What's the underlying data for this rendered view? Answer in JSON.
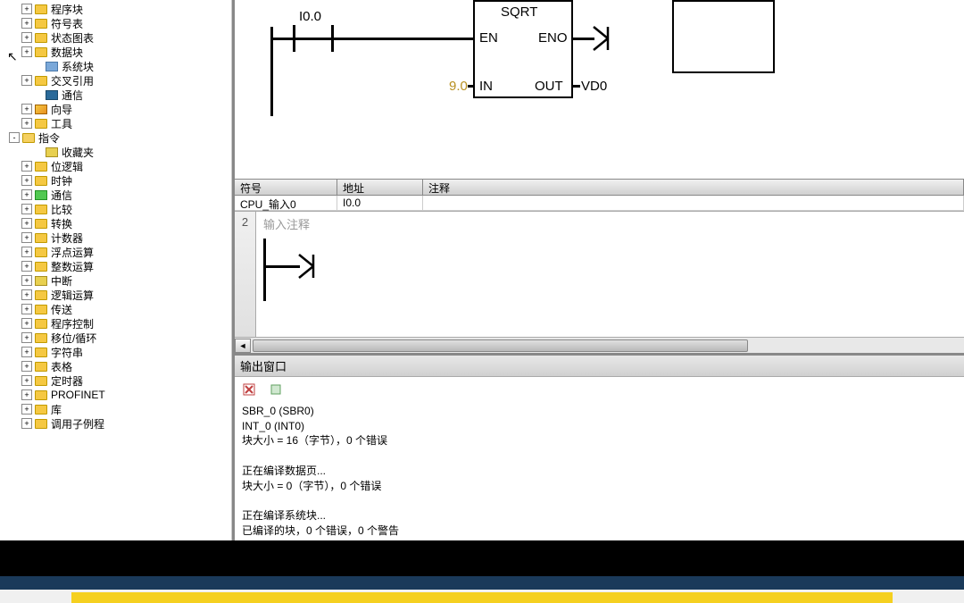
{
  "tree": {
    "items": [
      {
        "label": "程序块",
        "indent": 1,
        "toggle": "+",
        "icon": "folder"
      },
      {
        "label": "符号表",
        "indent": 1,
        "toggle": "+",
        "icon": "folder"
      },
      {
        "label": "状态图表",
        "indent": 1,
        "toggle": "+",
        "icon": "folder"
      },
      {
        "label": "数据块",
        "indent": 1,
        "toggle": "+",
        "icon": "folder"
      },
      {
        "label": "系统块",
        "indent": 2,
        "toggle": "",
        "icon": "block"
      },
      {
        "label": "交叉引用",
        "indent": 1,
        "toggle": "+",
        "icon": "folder"
      },
      {
        "label": "通信",
        "indent": 2,
        "toggle": "",
        "icon": "screen"
      },
      {
        "label": "向导",
        "indent": 1,
        "toggle": "+",
        "icon": "wand"
      },
      {
        "label": "工具",
        "indent": 1,
        "toggle": "+",
        "icon": "folder"
      },
      {
        "label": "指令",
        "indent": 0,
        "toggle": "-",
        "icon": "folder-open"
      },
      {
        "label": "收藏夹",
        "indent": 2,
        "toggle": "",
        "icon": "yellow"
      },
      {
        "label": "位逻辑",
        "indent": 1,
        "toggle": "+",
        "icon": "folder"
      },
      {
        "label": "时钟",
        "indent": 1,
        "toggle": "+",
        "icon": "folder"
      },
      {
        "label": "通信",
        "indent": 1,
        "toggle": "+",
        "icon": "green"
      },
      {
        "label": "比较",
        "indent": 1,
        "toggle": "+",
        "icon": "folder"
      },
      {
        "label": "转换",
        "indent": 1,
        "toggle": "+",
        "icon": "folder"
      },
      {
        "label": "计数器",
        "indent": 1,
        "toggle": "+",
        "icon": "folder"
      },
      {
        "label": "浮点运算",
        "indent": 1,
        "toggle": "+",
        "icon": "folder"
      },
      {
        "label": "整数运算",
        "indent": 1,
        "toggle": "+",
        "icon": "folder"
      },
      {
        "label": "中断",
        "indent": 1,
        "toggle": "+",
        "icon": "yellow"
      },
      {
        "label": "逻辑运算",
        "indent": 1,
        "toggle": "+",
        "icon": "folder"
      },
      {
        "label": "传送",
        "indent": 1,
        "toggle": "+",
        "icon": "folder"
      },
      {
        "label": "程序控制",
        "indent": 1,
        "toggle": "+",
        "icon": "folder"
      },
      {
        "label": "移位/循环",
        "indent": 1,
        "toggle": "+",
        "icon": "folder"
      },
      {
        "label": "字符串",
        "indent": 1,
        "toggle": "+",
        "icon": "folder"
      },
      {
        "label": "表格",
        "indent": 1,
        "toggle": "+",
        "icon": "folder"
      },
      {
        "label": "定时器",
        "indent": 1,
        "toggle": "+",
        "icon": "folder"
      },
      {
        "label": "PROFINET",
        "indent": 1,
        "toggle": "+",
        "icon": "folder"
      },
      {
        "label": "库",
        "indent": 1,
        "toggle": "+",
        "icon": "folder"
      },
      {
        "label": "调用子例程",
        "indent": 1,
        "toggle": "+",
        "icon": "folder"
      }
    ]
  },
  "ladder": {
    "contact_address": "I0.0",
    "block_name": "SQRT",
    "en_label": "EN",
    "eno_label": "ENO",
    "in_label": "IN",
    "out_label": "OUT",
    "in_value": "9.0",
    "out_addr": "VD0"
  },
  "symboltable": {
    "headers": {
      "sym": "符号",
      "addr": "地址",
      "comment": "注释"
    },
    "row": {
      "sym": "CPU_输入0",
      "addr": "I0.0",
      "comment": ""
    }
  },
  "network2": {
    "num": "2",
    "comment_placeholder": "输入注释"
  },
  "output": {
    "title": "输出窗口",
    "lines": [
      "SBR_0 (SBR0)",
      "INT_0 (INT0)",
      "块大小 = 16（字节），0 个错误",
      "",
      "正在编译数据页...",
      "块大小 = 0（字节），0 个错误",
      "",
      "正在编译系统块...",
      "已编译的块，0 个错误，0 个警告"
    ]
  }
}
